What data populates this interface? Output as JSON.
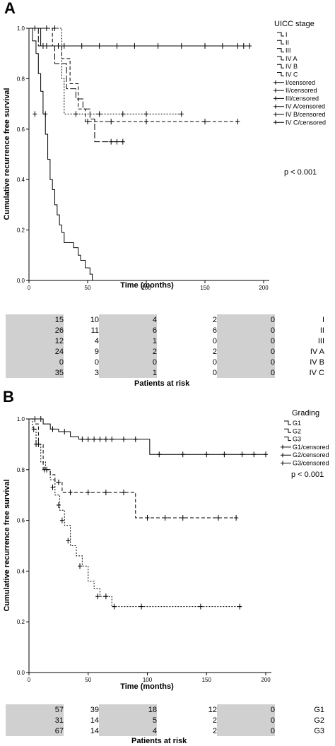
{
  "panels": {
    "a": {
      "letter": "A",
      "legend_title": "UICC stage",
      "pvalue": "p < 0.001",
      "legend_items": [
        "I",
        "II",
        "III",
        "IV A",
        "IV B",
        "IV C",
        "I/censored",
        "II/censored",
        "III/censored",
        "IV A/censored",
        "IV B/censored",
        "IV C/censored"
      ],
      "risk_title": "Patients at risk",
      "risk_rows": [
        {
          "label": "I",
          "values": [
            "15",
            "10",
            "4",
            "2",
            "0"
          ]
        },
        {
          "label": "II",
          "values": [
            "26",
            "11",
            "6",
            "6",
            "0"
          ]
        },
        {
          "label": "III",
          "values": [
            "12",
            "4",
            "1",
            "0",
            "0"
          ]
        },
        {
          "label": "IV A",
          "values": [
            "24",
            "9",
            "2",
            "2",
            "0"
          ]
        },
        {
          "label": "IV B",
          "values": [
            "0",
            "0",
            "0",
            "0",
            "0"
          ]
        },
        {
          "label": "IV C",
          "values": [
            "35",
            "3",
            "1",
            "0",
            "0"
          ]
        }
      ]
    },
    "b": {
      "letter": "B",
      "legend_title": "Grading",
      "pvalue": "p < 0.001",
      "legend_items": [
        "G1",
        "G2",
        "G3",
        "G1/censored",
        "G2/censored",
        "G3/censored"
      ],
      "risk_title": "Patients at risk",
      "risk_rows": [
        {
          "label": "G1",
          "values": [
            "57",
            "39",
            "18",
            "12",
            "0"
          ]
        },
        {
          "label": "G2",
          "values": [
            "31",
            "14",
            "5",
            "2",
            "0"
          ]
        },
        {
          "label": "G3",
          "values": [
            "67",
            "14",
            "4",
            "2",
            "0"
          ]
        }
      ]
    }
  },
  "chart_data": [
    {
      "type": "line",
      "title": "",
      "xlabel": "Time (months)",
      "ylabel": "Cumulative recurrence free survival",
      "xlim": [
        0,
        200
      ],
      "ylim": [
        0,
        1
      ],
      "xticks": [
        "0",
        "50",
        "100",
        "150",
        "200"
      ],
      "yticks": [
        "0.0",
        "0.2",
        "0.4",
        "0.6",
        "0.8",
        "1.0"
      ],
      "legend_position": "top-right",
      "series": [
        {
          "name": "I",
          "dash": "solid",
          "steps": [
            [
              0,
              1.0
            ],
            [
              10,
              0.93
            ],
            [
              188,
              0.93
            ]
          ],
          "censored": [
            [
              15,
              0.93
            ],
            [
              30,
              0.93
            ],
            [
              45,
              0.93
            ],
            [
              60,
              0.93
            ],
            [
              75,
              0.93
            ],
            [
              90,
              0.93
            ],
            [
              110,
              0.93
            ],
            [
              130,
              0.93
            ],
            [
              150,
              0.93
            ],
            [
              165,
              0.93
            ],
            [
              178,
              0.93
            ],
            [
              183,
              0.93
            ],
            [
              188,
              0.93
            ]
          ]
        },
        {
          "name": "II",
          "dash": "dotted",
          "steps": [
            [
              0,
              1.0
            ],
            [
              28,
              1.0
            ],
            [
              28,
              0.8
            ],
            [
              30,
              0.66
            ],
            [
              130,
              0.66
            ]
          ],
          "censored": [
            [
              5,
              1.0
            ],
            [
              15,
              1.0
            ],
            [
              22,
              1.0
            ],
            [
              40,
              0.66
            ],
            [
              60,
              0.66
            ],
            [
              80,
              0.66
            ],
            [
              100,
              0.66
            ],
            [
              130,
              0.66
            ]
          ]
        },
        {
          "name": "III",
          "dash": "dashed",
          "steps": [
            [
              0,
              1.0
            ],
            [
              20,
              1.0
            ],
            [
              20,
              0.93
            ],
            [
              28,
              0.88
            ],
            [
              35,
              0.78
            ],
            [
              42,
              0.74
            ],
            [
              42,
              0.68
            ],
            [
              48,
              0.63
            ],
            [
              60,
              0.63
            ],
            [
              178,
              0.63
            ]
          ],
          "censored": [
            [
              25,
              0.93
            ],
            [
              50,
              0.63
            ],
            [
              70,
              0.63
            ],
            [
              100,
              0.63
            ],
            [
              150,
              0.63
            ],
            [
              178,
              0.63
            ]
          ]
        },
        {
          "name": "IV A",
          "dash": "longdash",
          "steps": [
            [
              0,
              1.0
            ],
            [
              8,
              1.0
            ],
            [
              8,
              0.93
            ],
            [
              22,
              0.86
            ],
            [
              32,
              0.76
            ],
            [
              40,
              0.72
            ],
            [
              46,
              0.68
            ],
            [
              52,
              0.64
            ],
            [
              56,
              0.55
            ],
            [
              80,
              0.55
            ]
          ],
          "censored": [
            [
              12,
              0.93
            ],
            [
              70,
              0.55
            ],
            [
              75,
              0.55
            ],
            [
              80,
              0.55
            ]
          ]
        },
        {
          "name": "IV C",
          "dash": "solid",
          "steps": [
            [
              0,
              1.0
            ],
            [
              3,
              0.95
            ],
            [
              6,
              0.9
            ],
            [
              8,
              0.82
            ],
            [
              10,
              0.75
            ],
            [
              12,
              0.66
            ],
            [
              14,
              0.58
            ],
            [
              16,
              0.48
            ],
            [
              18,
              0.4
            ],
            [
              20,
              0.36
            ],
            [
              22,
              0.3
            ],
            [
              24,
              0.26
            ],
            [
              26,
              0.22
            ],
            [
              28,
              0.19
            ],
            [
              30,
              0.15
            ],
            [
              38,
              0.13
            ],
            [
              42,
              0.1
            ],
            [
              44,
              0.08
            ],
            [
              48,
              0.05
            ],
            [
              52,
              0.025
            ],
            [
              54,
              0.0
            ]
          ],
          "censored": [
            [
              5,
              0.66
            ],
            [
              14,
              0.66
            ]
          ]
        }
      ]
    },
    {
      "type": "line",
      "title": "",
      "xlabel": "Time (months)",
      "ylabel": "Cumulative recurrence free survival",
      "xlim": [
        0,
        200
      ],
      "ylim": [
        0,
        1
      ],
      "xticks": [
        "0",
        "50",
        "100",
        "150",
        "200"
      ],
      "yticks": [
        "0.0",
        "0.2",
        "0.4",
        "0.6",
        "0.8",
        "1.0"
      ],
      "legend_position": "top-right",
      "series": [
        {
          "name": "G1",
          "dash": "solid",
          "steps": [
            [
              0,
              1.0
            ],
            [
              12,
              0.98
            ],
            [
              18,
              0.96
            ],
            [
              25,
              0.95
            ],
            [
              35,
              0.93
            ],
            [
              42,
              0.92
            ],
            [
              102,
              0.92
            ],
            [
              102,
              0.86
            ],
            [
              200,
              0.86
            ]
          ],
          "censored": [
            [
              5,
              1.0
            ],
            [
              10,
              1.0
            ],
            [
              20,
              0.96
            ],
            [
              30,
              0.95
            ],
            [
              45,
              0.92
            ],
            [
              50,
              0.92
            ],
            [
              55,
              0.92
            ],
            [
              60,
              0.92
            ],
            [
              65,
              0.92
            ],
            [
              70,
              0.92
            ],
            [
              80,
              0.92
            ],
            [
              90,
              0.92
            ],
            [
              110,
              0.86
            ],
            [
              130,
              0.86
            ],
            [
              150,
              0.86
            ],
            [
              165,
              0.86
            ],
            [
              180,
              0.86
            ],
            [
              190,
              0.86
            ],
            [
              200,
              0.86
            ]
          ]
        },
        {
          "name": "G2",
          "dash": "dashed",
          "steps": [
            [
              0,
              1.0
            ],
            [
              5,
              0.98
            ],
            [
              8,
              0.9
            ],
            [
              12,
              0.8
            ],
            [
              18,
              0.78
            ],
            [
              22,
              0.75
            ],
            [
              28,
              0.71
            ],
            [
              90,
              0.71
            ],
            [
              90,
              0.61
            ],
            [
              175,
              0.61
            ]
          ],
          "censored": [
            [
              6,
              0.9
            ],
            [
              15,
              0.8
            ],
            [
              25,
              0.75
            ],
            [
              35,
              0.71
            ],
            [
              50,
              0.71
            ],
            [
              65,
              0.71
            ],
            [
              80,
              0.71
            ],
            [
              100,
              0.61
            ],
            [
              115,
              0.61
            ],
            [
              130,
              0.61
            ],
            [
              160,
              0.61
            ],
            [
              175,
              0.61
            ]
          ]
        },
        {
          "name": "G3",
          "dash": "dotted",
          "steps": [
            [
              0,
              1.0
            ],
            [
              3,
              0.96
            ],
            [
              6,
              0.9
            ],
            [
              10,
              0.83
            ],
            [
              14,
              0.8
            ],
            [
              18,
              0.76
            ],
            [
              22,
              0.7
            ],
            [
              26,
              0.64
            ],
            [
              30,
              0.58
            ],
            [
              35,
              0.5
            ],
            [
              40,
              0.46
            ],
            [
              45,
              0.42
            ],
            [
              50,
              0.36
            ],
            [
              55,
              0.33
            ],
            [
              60,
              0.3
            ],
            [
              70,
              0.26
            ],
            [
              180,
              0.26
            ]
          ],
          "censored": [
            [
              4,
              0.96
            ],
            [
              8,
              0.9
            ],
            [
              13,
              0.8
            ],
            [
              20,
              0.73
            ],
            [
              25,
              0.66
            ],
            [
              28,
              0.6
            ],
            [
              33,
              0.52
            ],
            [
              43,
              0.42
            ],
            [
              58,
              0.3
            ],
            [
              65,
              0.3
            ],
            [
              72,
              0.26
            ],
            [
              95,
              0.26
            ],
            [
              145,
              0.26
            ],
            [
              178,
              0.26
            ]
          ]
        }
      ]
    }
  ]
}
